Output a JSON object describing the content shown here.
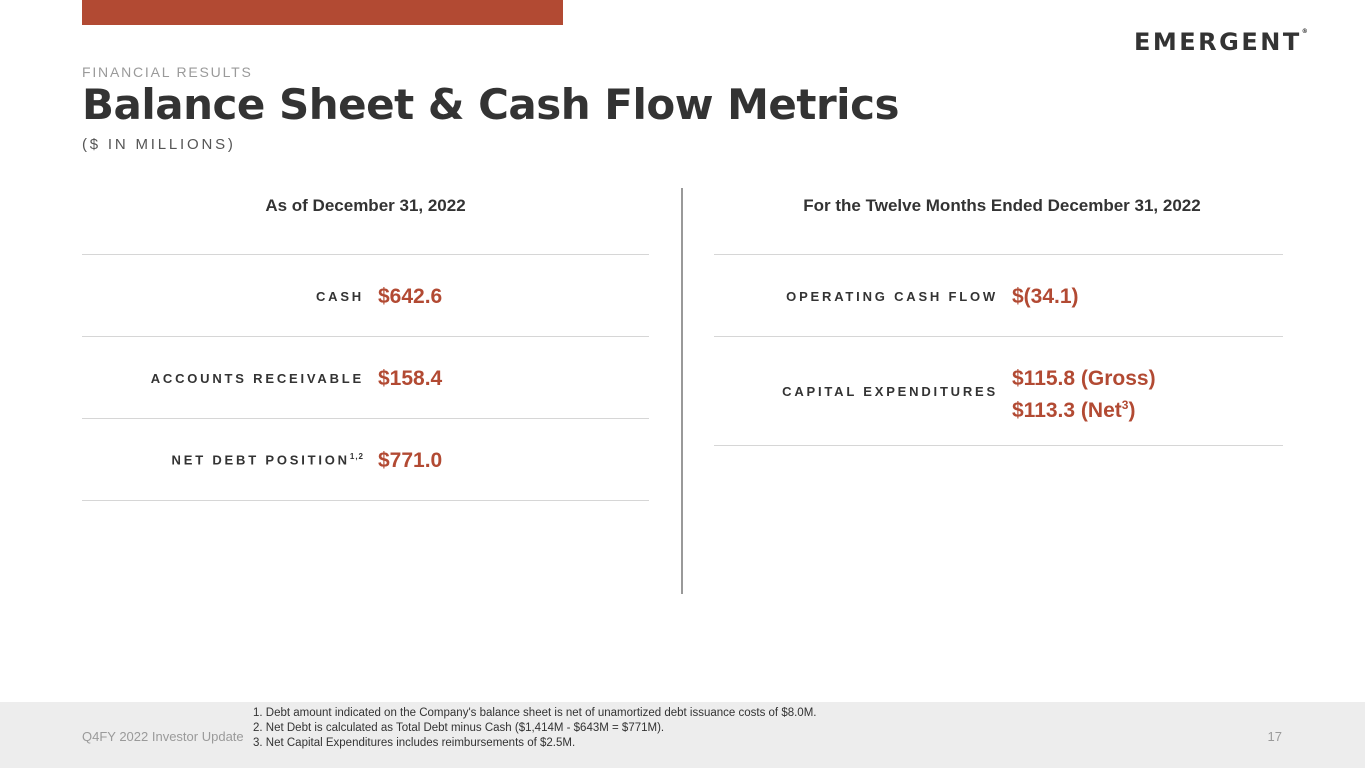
{
  "header": {
    "logo_text": "EMERGENT",
    "logo_mark": "®",
    "section_label": "FINANCIAL RESULTS",
    "title": "Balance Sheet & Cash Flow Metrics",
    "subtitle": "($ IN MILLIONS)"
  },
  "left": {
    "heading": "As of December 31, 2022",
    "rows": [
      {
        "label": "CASH",
        "value": "$642.6"
      },
      {
        "label": "ACCOUNTS RECEIVABLE",
        "value": "$158.4"
      },
      {
        "label": "NET DEBT POSITION",
        "label_sup": "1,2",
        "value": "$771.0"
      }
    ]
  },
  "right": {
    "heading": "For the Twelve Months Ended December 31, 2022",
    "rows": [
      {
        "label": "OPERATING CASH FLOW",
        "value": "$(34.1)"
      },
      {
        "label": "CAPITAL EXPENDITURES",
        "value_line1": "$115.8 (Gross)",
        "value_line2_prefix": "$113.3 (Net",
        "value_line2_sup": "3",
        "value_line2_suffix": ")"
      }
    ]
  },
  "footer": {
    "left": "Q4FY 2022 Investor Update",
    "notes": [
      "1. Debt amount indicated on the Company's balance sheet is net of unamortized debt issuance costs of $8.0M.",
      "2. Net Debt is calculated as Total Debt minus Cash ($1,414M - $643M = $771M).",
      "3. Net Capital Expenditures includes reimbursements of $2.5M."
    ],
    "page_number": "17"
  },
  "colors": {
    "accent": "#b24a33",
    "text": "#333333",
    "muted": "#9a9a9a"
  }
}
